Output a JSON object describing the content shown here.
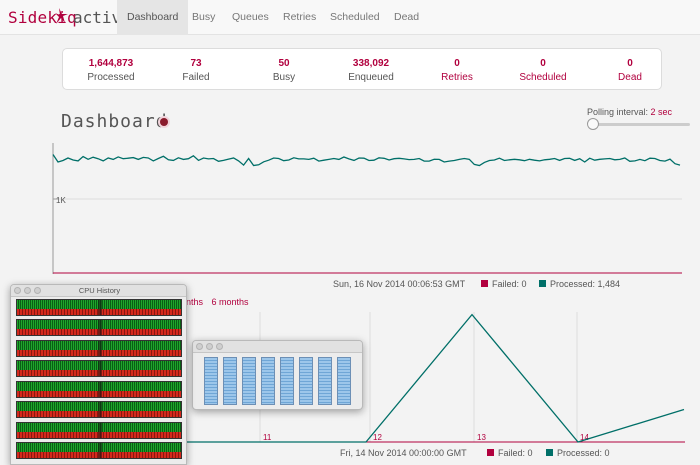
{
  "navbar": {
    "brand": "Sidekiq",
    "status": "active",
    "items": [
      {
        "label": "Dashboard",
        "active": true
      },
      {
        "label": "Busy",
        "active": false
      },
      {
        "label": "Queues",
        "active": false
      },
      {
        "label": "Retries",
        "active": false
      },
      {
        "label": "Scheduled",
        "active": false
      },
      {
        "label": "Dead",
        "active": false
      }
    ]
  },
  "summary": {
    "processed": {
      "value": "1,644,873",
      "label": "Processed"
    },
    "failed": {
      "value": "73",
      "label": "Failed"
    },
    "busy": {
      "value": "50",
      "label": "Busy"
    },
    "enqueued": {
      "value": "338,092",
      "label": "Enqueued"
    },
    "retries": {
      "value": "0",
      "label": "Retries"
    },
    "scheduled": {
      "value": "0",
      "label": "Scheduled"
    },
    "dead": {
      "value": "0",
      "label": "Dead"
    }
  },
  "dashboard": {
    "title": "Dashboard",
    "polling_label": "Polling interval:",
    "polling_value": "2 sec"
  },
  "realtime": {
    "timestamp": "Sun, 16 Nov 2014 00:06:53 GMT",
    "failed_label": "Failed: 0",
    "processed_label": "Processed: 1,484"
  },
  "history": {
    "range_links": [
      "nths",
      "6 months"
    ],
    "timestamp": "Fri, 14 Nov 2014 00:00:00 GMT",
    "failed_label": "Failed: 0",
    "processed_label": "Processed: 0"
  },
  "windows": {
    "cpu_title": "CPU History"
  },
  "colors": {
    "brand": "#b1003e",
    "processed": "#006f68",
    "failed": "#b1003e"
  },
  "chart_data": [
    {
      "type": "line",
      "title": "",
      "ytick_labels": [
        "1K"
      ],
      "series": [
        {
          "name": "Processed",
          "values": [
            1484,
            1402,
            1418,
            1446,
            1424,
            1414,
            1462,
            1432,
            1454,
            1438,
            1414,
            1446,
            1430,
            1458,
            1438,
            1444,
            1450,
            1430,
            1452,
            1446,
            1414,
            1440,
            1464,
            1426,
            1420,
            1448,
            1430,
            1438,
            1470,
            1420,
            1446,
            1436,
            1440,
            1410,
            1420,
            1434,
            1446,
            1414,
            1368,
            1440,
            1364,
            1372,
            1404,
            1422,
            1446,
            1440,
            1416,
            1424,
            1448,
            1436,
            1436,
            1430,
            1444,
            1412,
            1422,
            1430,
            1440,
            1430,
            1456,
            1436,
            1420,
            1446,
            1444,
            1418,
            1422,
            1448,
            1442,
            1424,
            1438,
            1442,
            1436,
            1428,
            1430,
            1440,
            1412,
            1412,
            1432,
            1430,
            1402,
            1412,
            1418,
            1430,
            1440,
            1432,
            1376,
            1364,
            1398,
            1418,
            1424,
            1444,
            1418,
            1426,
            1432,
            1426,
            1416,
            1432,
            1422,
            1414,
            1426,
            1432,
            1440,
            1420,
            1440,
            1442,
            1420,
            1438,
            1402,
            1444,
            1422,
            1432,
            1436,
            1440,
            1426,
            1430,
            1446,
            1410,
            1414,
            1430,
            1416,
            1444,
            1440,
            1418,
            1412,
            1434,
            1384,
            1368
          ]
        },
        {
          "name": "Failed",
          "values": [
            0
          ]
        }
      ]
    },
    {
      "type": "line",
      "title": "",
      "xtick_labels": [
        "11",
        "12",
        "13",
        "14"
      ],
      "series": [
        {
          "name": "Processed",
          "x": [
            10.3,
            12,
            13,
            14,
            15
          ],
          "values": [
            0,
            0,
            98,
            0,
            25
          ]
        },
        {
          "name": "Failed",
          "x": [
            10.3,
            15
          ],
          "values": [
            0,
            0
          ]
        }
      ]
    }
  ]
}
